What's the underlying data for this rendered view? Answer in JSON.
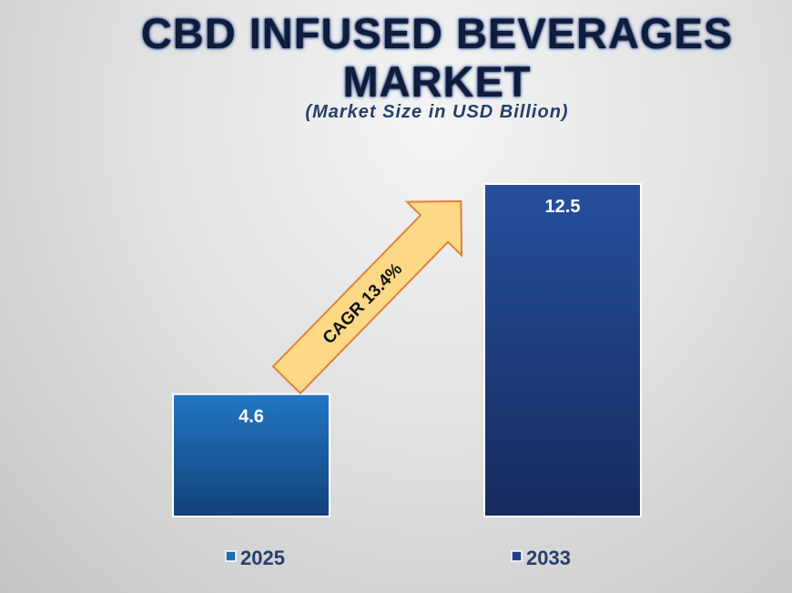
{
  "chart_data": {
    "type": "bar",
    "title": "CBD INFUSED BEVERAGES MARKET",
    "subtitle": "(Market Size in USD Billion)",
    "categories": [
      "2025",
      "2033"
    ],
    "values": [
      4.6,
      12.5
    ],
    "data_labels": [
      "4.6",
      "12.5"
    ],
    "colors": [
      "#1f6db3",
      "#223f8a"
    ],
    "ylim": [
      0,
      12.5
    ],
    "grid": false,
    "legend_position": "bottom",
    "annotation": "CAGR 13.4%",
    "annotation_color": "#fdd987"
  }
}
